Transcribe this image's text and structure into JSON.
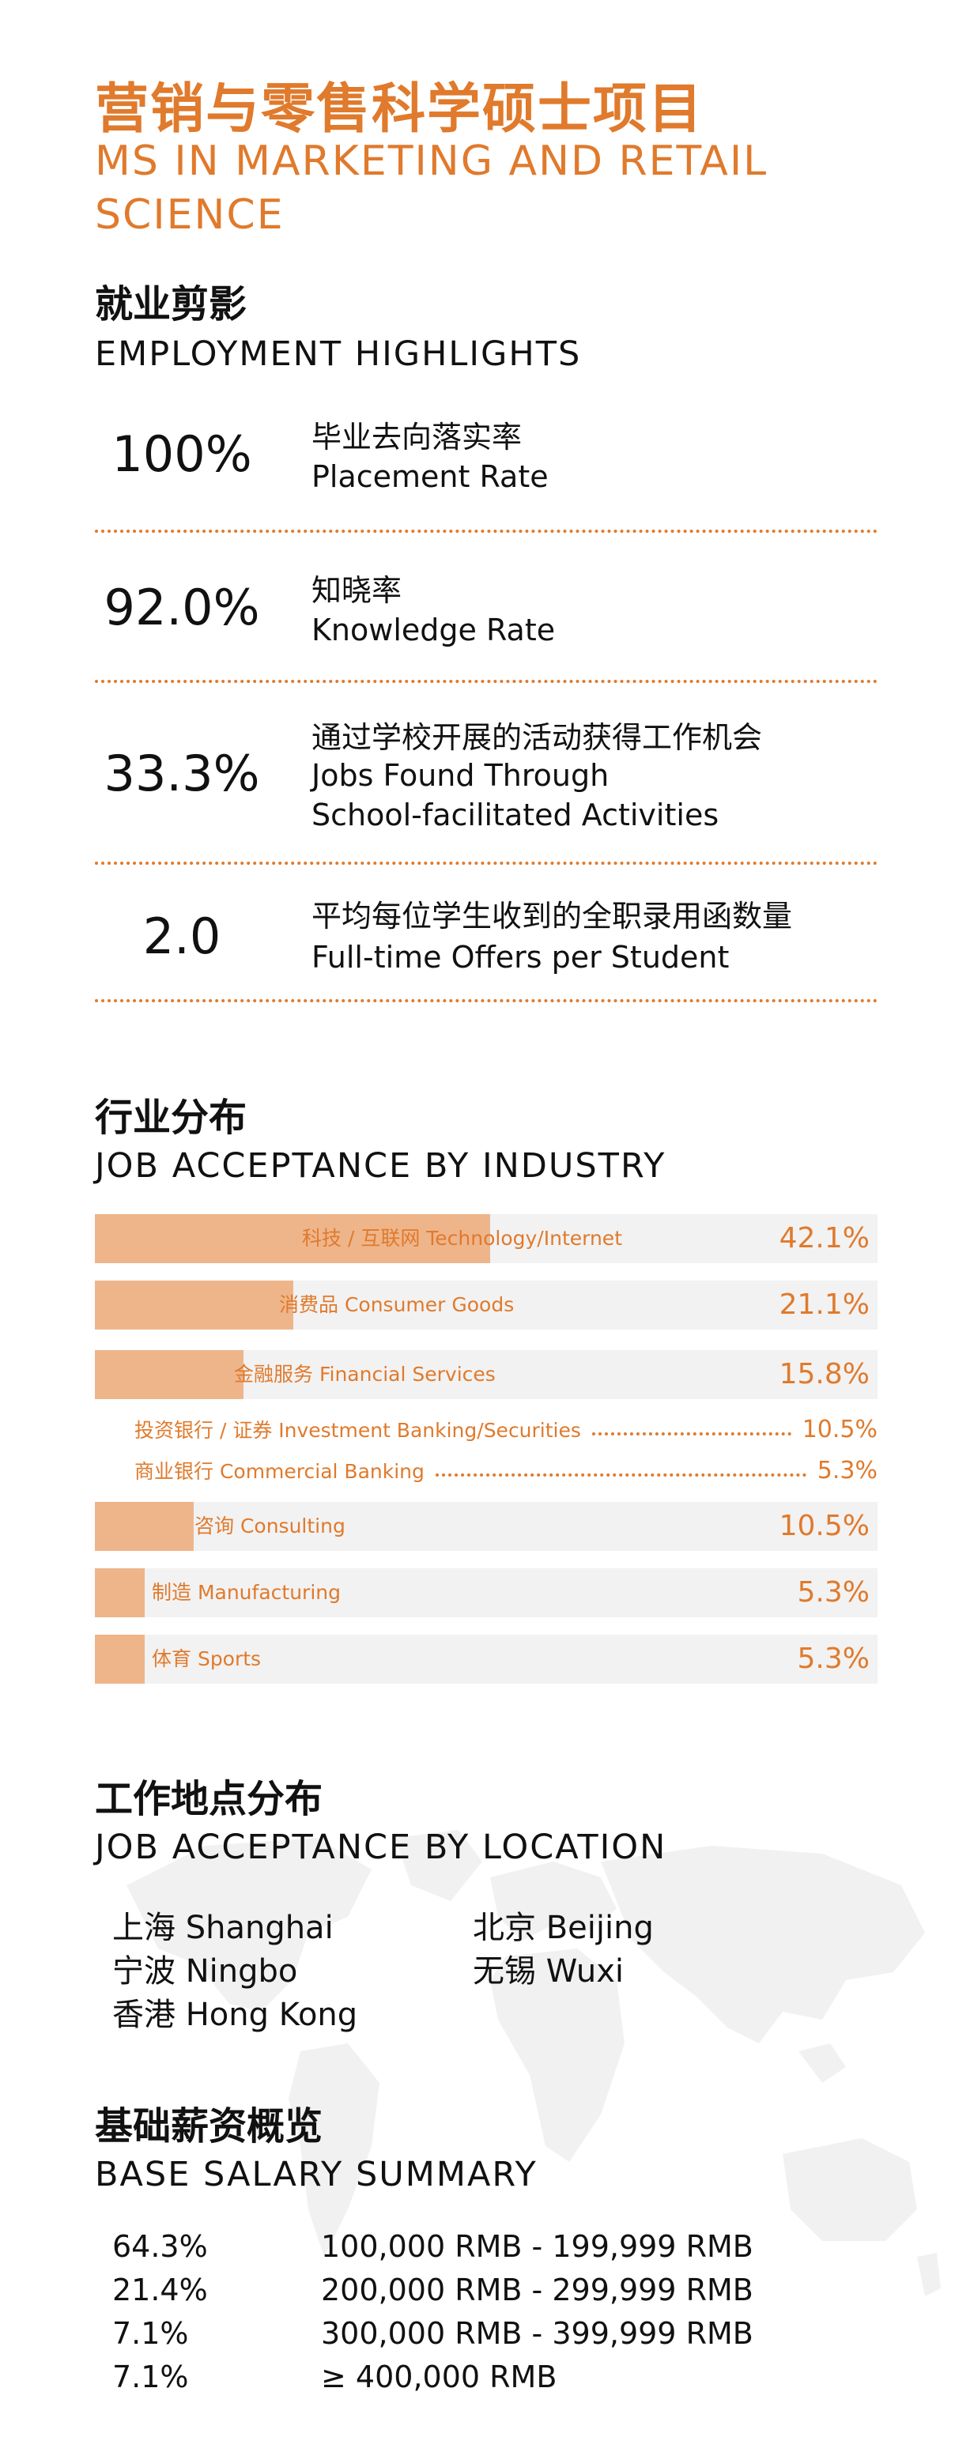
{
  "header": {
    "title_cn": "营销与零售科学硕士项目",
    "title_en": "MS IN MARKETING AND RETAIL SCIENCE"
  },
  "employment": {
    "title_cn": "就业剪影",
    "title_en": "EMPLOYMENT HIGHLIGHTS",
    "stats": [
      {
        "value": "100%",
        "label_cn": "毕业去向落实率",
        "label_en": "Placement Rate"
      },
      {
        "value": "92.0%",
        "label_cn": "知晓率",
        "label_en": "Knowledge Rate"
      },
      {
        "value": "33.3%",
        "label_cn": "通过学校开展的活动获得工作机会",
        "label_en_1": "Jobs Found Through",
        "label_en_2": "School-facilitated Activities"
      },
      {
        "value": "2.0",
        "label_cn": "平均每位学生收到的全职录用函数量",
        "label_en": "Full-time Offers per Student"
      }
    ]
  },
  "industry": {
    "title_cn": "行业分布",
    "title_en": "JOB ACCEPTANCE BY INDUSTRY"
  },
  "chart_data": {
    "type": "bar",
    "categories": [
      "科技 / 互联网 Technology/Internet",
      "消费品 Consumer Goods",
      "金融服务 Financial Services",
      "咨询 Consulting",
      "制造 Manufacturing",
      "体育 Sports"
    ],
    "values": [
      42.1,
      21.1,
      15.8,
      10.5,
      5.3,
      5.3
    ],
    "value_labels": [
      "42.1%",
      "21.1%",
      "15.8%",
      "10.5%",
      "5.3%",
      "5.3%"
    ],
    "sub_items": [
      {
        "parent": "金融服务 Financial Services",
        "label": "投资银行 / 证券 Investment Banking/Securities",
        "value": 10.5,
        "value_label": "10.5%"
      },
      {
        "parent": "金融服务 Financial Services",
        "label": "商业银行 Commercial Banking",
        "value": 5.3,
        "value_label": "5.3%"
      }
    ],
    "orientation": "horizontal",
    "xlim": [
      0,
      100
    ],
    "colors": {
      "fill": "#eeb58b",
      "track": "#f2f2f2",
      "text": "#e07a2c"
    }
  },
  "location": {
    "title_cn": "工作地点分布",
    "title_en": "JOB ACCEPTANCE BY LOCATION",
    "col1": [
      "上海 Shanghai",
      "宁波 Ningbo",
      "香港 Hong Kong"
    ],
    "col2": [
      "北京 Beijing",
      "无锡 Wuxi"
    ]
  },
  "salary": {
    "title_cn": "基础薪资概览",
    "title_en": "BASE SALARY SUMMARY",
    "rows": [
      {
        "pct": "64.3%",
        "range": "100,000 RMB - 199,999 RMB"
      },
      {
        "pct": "21.4%",
        "range": "200,000 RMB - 299,999 RMB"
      },
      {
        "pct": "7.1%",
        "range": "300,000 RMB - 399,999 RMB"
      },
      {
        "pct": "7.1%",
        "range": "≥ 400,000 RMB"
      }
    ]
  },
  "colors": {
    "accent": "#e07a2c",
    "bar_fill": "#eeb58b",
    "bar_track": "#f2f2f2",
    "map": "#f0f0f0"
  },
  "icons": {
    "map": "world-map-icon"
  }
}
